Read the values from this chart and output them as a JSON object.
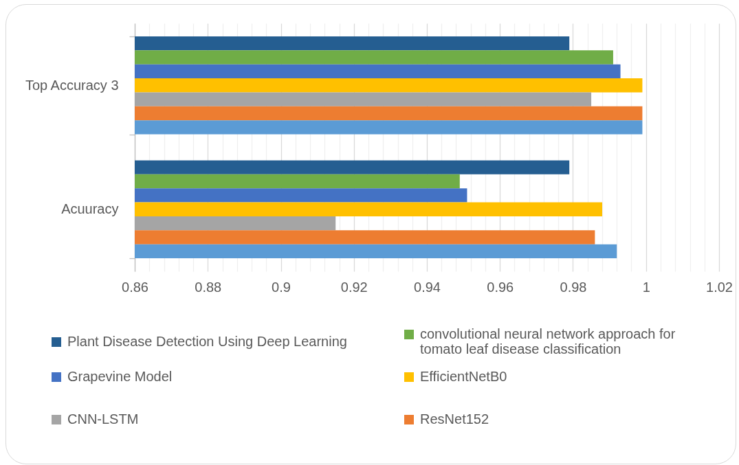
{
  "chart_data": {
    "type": "bar",
    "orientation": "horizontal",
    "categories": [
      "Top Accuracy 3",
      "Acuuracy"
    ],
    "series": [
      {
        "name": "Plant Disease Detection Using Deep Learning",
        "color": "#255e91",
        "values": [
          0.979,
          0.979
        ]
      },
      {
        "name": "convolutional neural network approach for tomato leaf disease classification",
        "color": "#70ad47",
        "values": [
          0.991,
          0.949
        ]
      },
      {
        "name": "Grapevine Model",
        "color": "#4472c4",
        "values": [
          0.993,
          0.951
        ]
      },
      {
        "name": "EfficientNetB0",
        "color": "#ffc000",
        "values": [
          0.999,
          0.988
        ]
      },
      {
        "name": "CNN-LSTM",
        "color": "#a5a5a5",
        "values": [
          0.985,
          0.915
        ]
      },
      {
        "name": "ResNet152",
        "color": "#ed7d31",
        "values": [
          0.999,
          0.986
        ]
      },
      {
        "color": "#5b9bd5",
        "values": [
          0.999,
          0.992
        ]
      }
    ],
    "xlim": [
      0.86,
      1.02
    ],
    "xticks": [
      0.86,
      {
        "value": 0.864,
        "label": null
      },
      {
        "value": 0.868,
        "label": null
      },
      {
        "value": 0.872,
        "label": null
      },
      {
        "value": 0.876,
        "label": null
      },
      0.88,
      {
        "value": 0.884,
        "label": null
      },
      {
        "value": 0.888,
        "label": null
      },
      {
        "value": 0.892,
        "label": null
      },
      {
        "value": 0.896,
        "label": null
      },
      0.9,
      {
        "value": 0.904,
        "label": null
      },
      {
        "value": 0.908,
        "label": null
      },
      {
        "value": 0.912,
        "label": null
      },
      {
        "value": 0.916,
        "label": null
      },
      0.92,
      {
        "value": 0.924,
        "label": null
      },
      {
        "value": 0.928,
        "label": null
      },
      {
        "value": 0.932,
        "label": null
      },
      {
        "value": 0.936,
        "label": null
      },
      0.94,
      {
        "value": 0.944,
        "label": null
      },
      {
        "value": 0.948,
        "label": null
      },
      {
        "value": 0.952,
        "label": null
      },
      {
        "value": 0.956,
        "label": null
      },
      0.96,
      {
        "value": 0.964,
        "label": null
      },
      {
        "value": 0.968,
        "label": null
      },
      {
        "value": 0.972,
        "label": null
      },
      {
        "value": 0.976,
        "label": null
      },
      0.98,
      {
        "value": 0.984,
        "label": null
      },
      {
        "value": 0.988,
        "label": null
      },
      {
        "value": 0.992,
        "label": null
      },
      {
        "value": 0.996,
        "label": null
      },
      1,
      {
        "value": 1.004,
        "label": null
      },
      {
        "value": 1.008,
        "label": null
      },
      {
        "value": 1.012,
        "label": null
      },
      {
        "value": 1.016,
        "label": null
      },
      1.02
    ],
    "grid": "x",
    "legend": "bottom"
  }
}
